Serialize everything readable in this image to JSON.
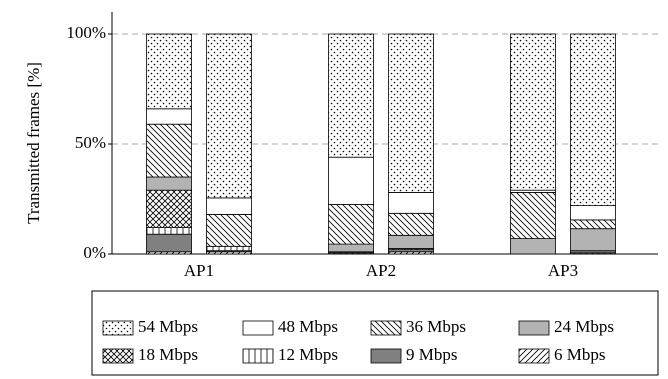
{
  "chart_data": {
    "type": "grouped-stacked-bar",
    "ylabel": "Transmitted frames [%]",
    "categories": [
      "AP1",
      "AP2",
      "AP3"
    ],
    "ylim": [
      0,
      100
    ],
    "yticks": [
      {
        "value": 0,
        "label": "0%"
      },
      {
        "value": 50,
        "label": "50%"
      },
      {
        "value": 100,
        "label": "100%"
      }
    ],
    "grid": true,
    "series": [
      {
        "name": "6 Mbps",
        "color": "#000000",
        "pattern": "diag-up",
        "values": [
          [
            1,
            1
          ],
          [
            0.5,
            1
          ],
          [
            0,
            0.5
          ]
        ]
      },
      {
        "name": "9 Mbps",
        "color": "#808080",
        "pattern": "solid",
        "values": [
          [
            8,
            0.5
          ],
          [
            0.5,
            1
          ],
          [
            0,
            1
          ]
        ]
      },
      {
        "name": "12 Mbps",
        "color": "#000000",
        "pattern": "vertical",
        "values": [
          [
            3,
            2
          ],
          [
            0,
            0.5
          ],
          [
            0,
            0
          ]
        ]
      },
      {
        "name": "18 Mbps",
        "color": "#000000",
        "pattern": "crosshatch",
        "values": [
          [
            17,
            0
          ],
          [
            0,
            0
          ],
          [
            0,
            0
          ]
        ]
      },
      {
        "name": "24 Mbps",
        "color": "#b3b3b3",
        "pattern": "solid",
        "values": [
          [
            6,
            0
          ],
          [
            3.5,
            6
          ],
          [
            7,
            10
          ]
        ]
      },
      {
        "name": "36 Mbps",
        "color": "#000000",
        "pattern": "diag-down",
        "values": [
          [
            24,
            14.5
          ],
          [
            18,
            10
          ],
          [
            21,
            4
          ]
        ]
      },
      {
        "name": "48 Mbps",
        "color": "#ffffff",
        "pattern": "solid",
        "values": [
          [
            7,
            7.5
          ],
          [
            21.5,
            9.5
          ],
          [
            1,
            6.5
          ]
        ]
      },
      {
        "name": "54 Mbps",
        "color": "#000000",
        "pattern": "dots",
        "values": [
          [
            34,
            74.5
          ],
          [
            56,
            72
          ],
          [
            71,
            78
          ]
        ]
      }
    ],
    "legend_order": [
      7,
      6,
      5,
      4,
      3,
      2,
      1,
      0
    ]
  }
}
